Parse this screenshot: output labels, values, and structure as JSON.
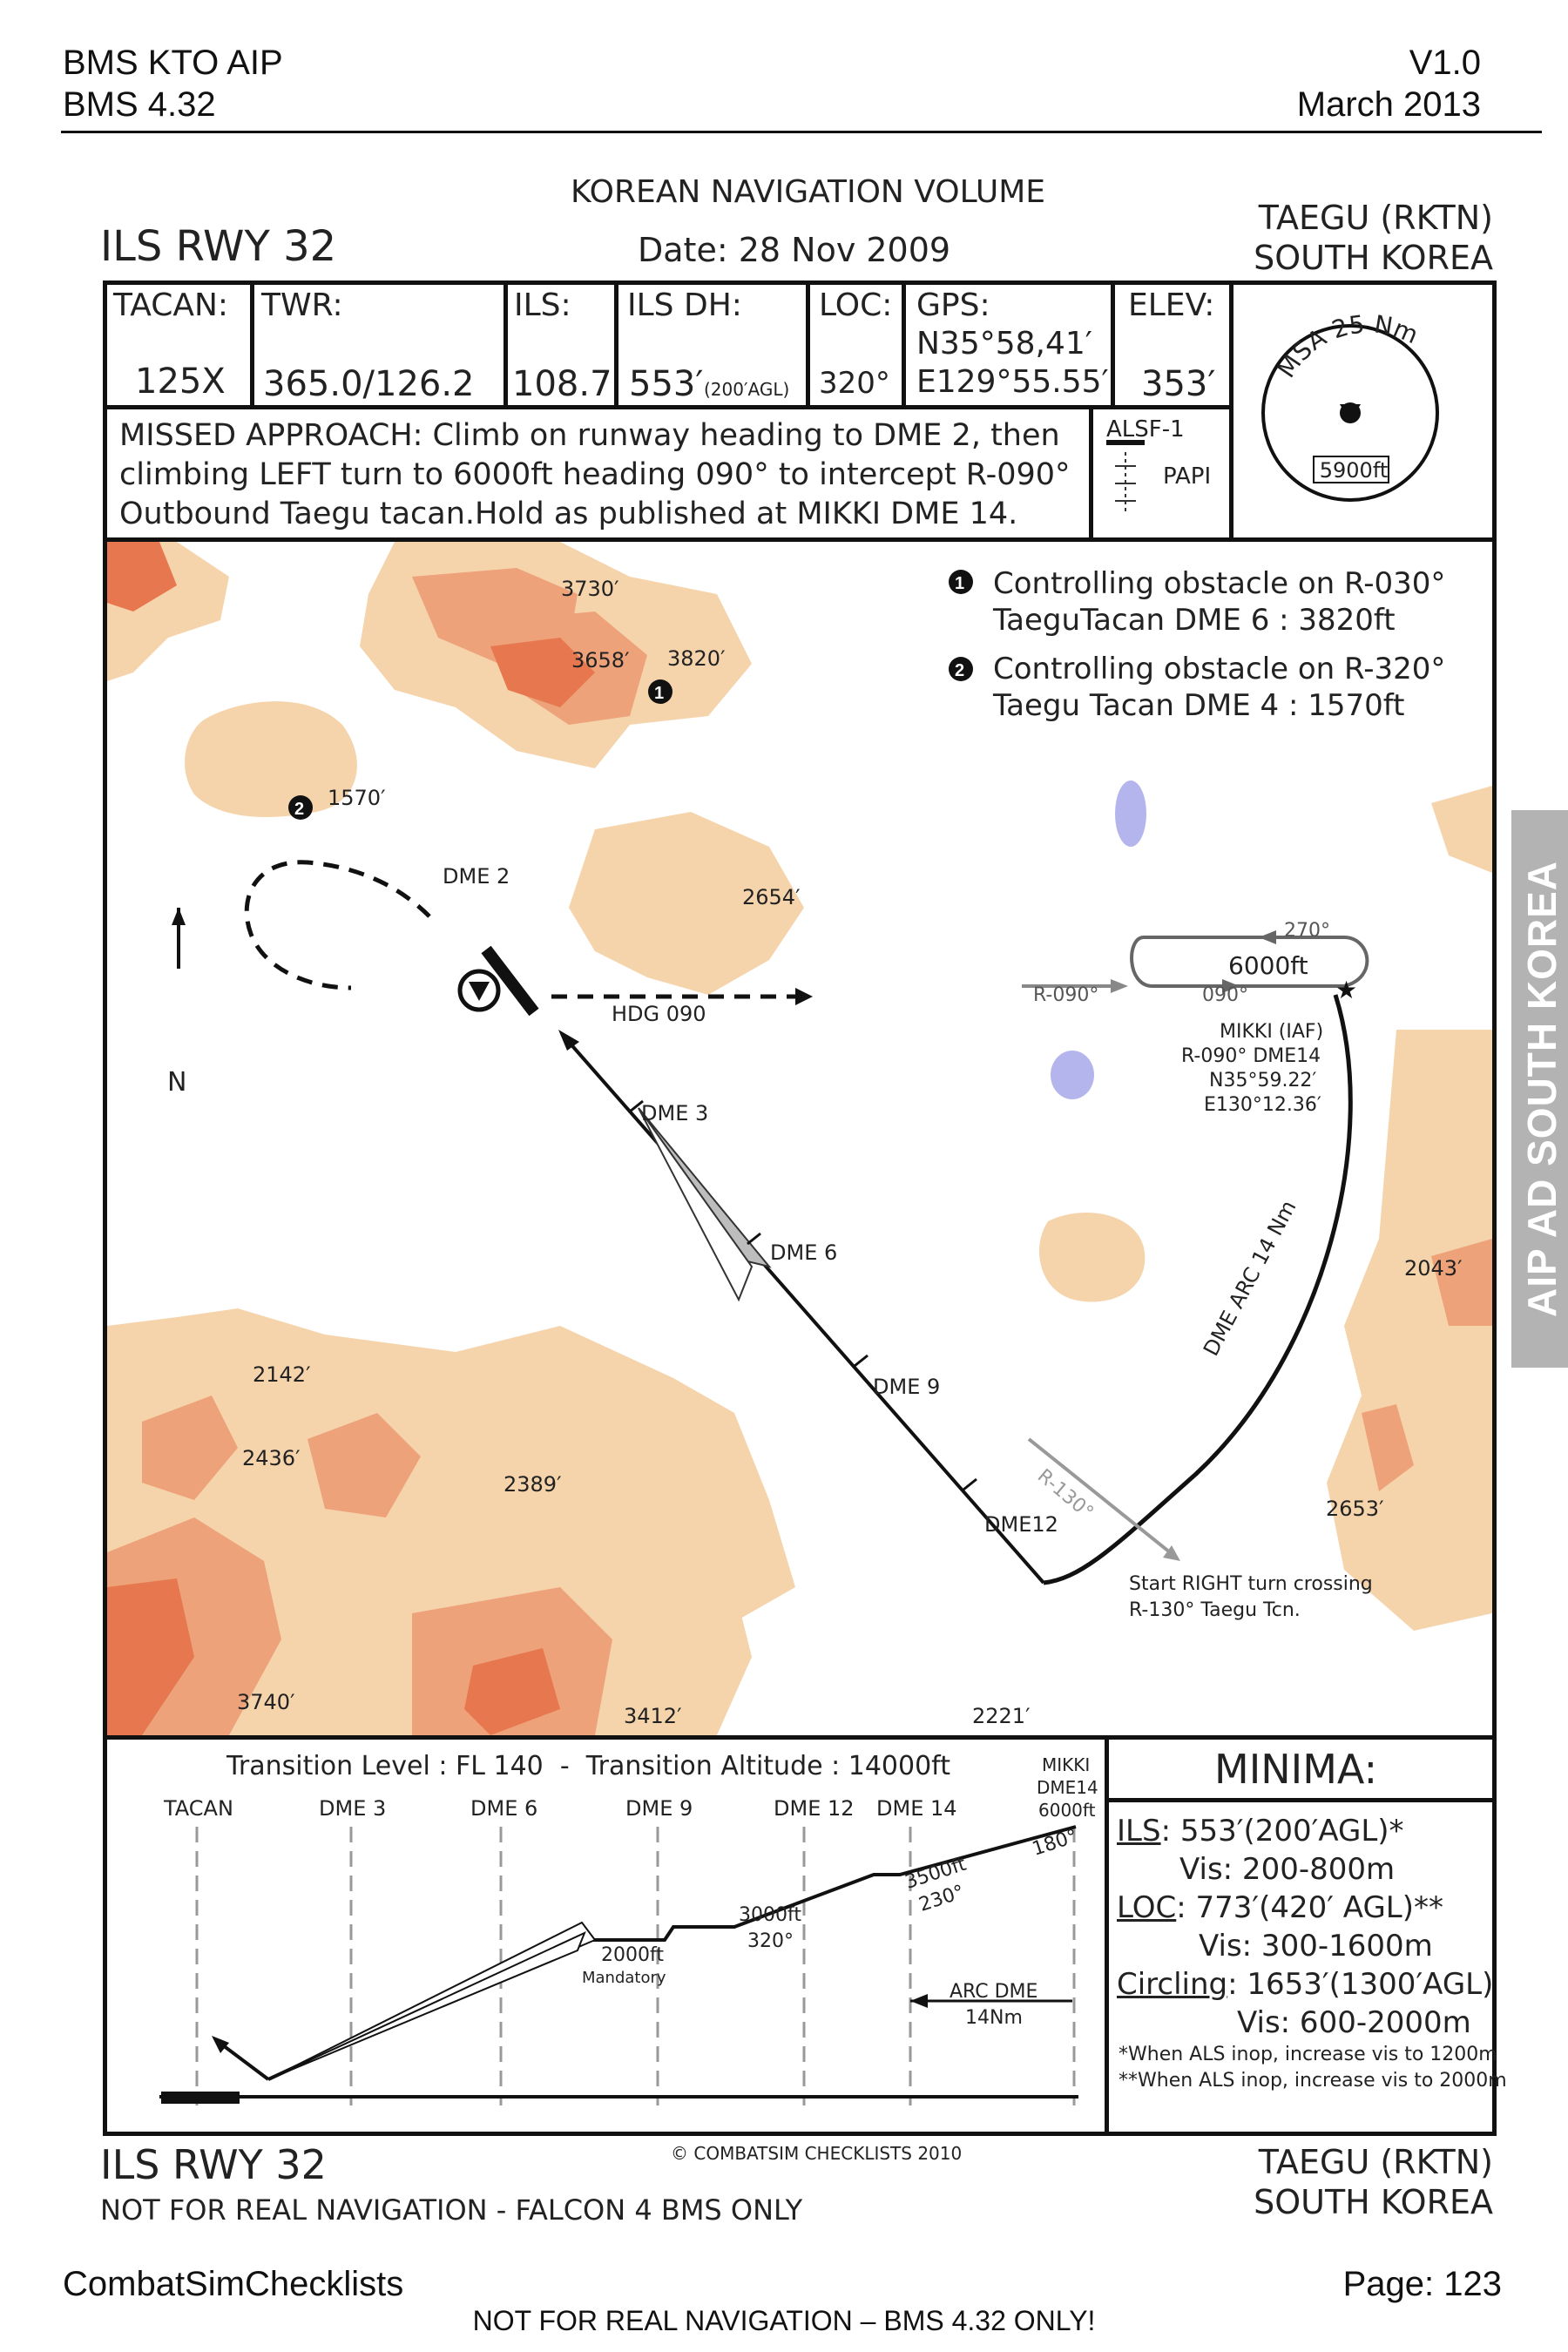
{
  "header": {
    "doc_title": "BMS KTO AIP",
    "doc_sub": "BMS 4.32",
    "version": "V1.0",
    "date": "March 2013"
  },
  "chart": {
    "volume": "KOREAN NAVIGATION VOLUME",
    "procedure": "ILS RWY 32",
    "chart_date": "Date: 28 Nov 2009",
    "airport": "TAEGU (RKTN)",
    "country": "SOUTH KOREA",
    "info": {
      "tacan_label": "TACAN:",
      "tacan_value": "125X",
      "twr_label": "TWR:",
      "twr_value": "365.0/126.2",
      "ils_label": "ILS:",
      "ils_value": "108.7",
      "ilsdh_label": "ILS DH:",
      "ilsdh_value": "553′",
      "ilsdh_agl": "(200′AGL)",
      "loc_label": "LOC:",
      "loc_value": "320°",
      "gps_label": "GPS:",
      "gps_lat": "N35°58,41′",
      "gps_lon": "E129°55.55′",
      "elev_label": "ELEV:",
      "elev_value": "353′"
    },
    "msa": {
      "label": "MSA 25 Nm",
      "value": "5900ft"
    },
    "missed_approach": [
      "MISSED APPROACH: Climb on runway heading to DME 2, then",
      "climbing LEFT turn to 6000ft heading 090° to intercept R-090°",
      "Outbound Taegu tacan.Hold as published at MIKKI DME 14."
    ],
    "lighting": {
      "alsf": "ALSF-1",
      "papi": "PAPI"
    },
    "plan": {
      "note1_line1": "Controlling obstacle on R-030°",
      "note1_line2": "TaeguTacan DME 6 : 3820ft",
      "note2_line1": "Controlling obstacle on R-320°",
      "note2_line2": "Taegu Tacan DME 4 : 1570ft",
      "north": "N",
      "elevations": [
        "3730′",
        "3658′",
        "3820′",
        "1570′",
        "2654′",
        "2043′",
        "2142′",
        "2436′",
        "2389′",
        "2653′",
        "3740′",
        "3412′",
        "2221′"
      ],
      "dme2": "DME 2",
      "dme3": "DME 3",
      "dme6": "DME 6",
      "dme9": "DME 9",
      "dme12": "DME12",
      "hdg": "HDG 090",
      "hold_alt": "6000ft",
      "hold_270": "270°",
      "hold_090": "090°",
      "r090": "R-090°",
      "mikki_name": "MIKKI (IAF)",
      "mikki_radial": "R-090° DME14",
      "mikki_lat": "N35°59.22′",
      "mikki_lon": "E130°12.36′",
      "arc": "DME ARC 14 Nm",
      "r130": "R-130°",
      "turn1": "Start RIGHT turn crossing",
      "turn2": "R-130° Taegu Tcn."
    },
    "profile": {
      "transition": "Transition Level : FL 140  -  Transition Altitude : 14000ft",
      "fixes": [
        "TACAN",
        "DME 3",
        "DME 6",
        "DME 9",
        "DME 12",
        "DME 14"
      ],
      "mikki": [
        "MIKKI",
        "DME14",
        "6000ft"
      ],
      "alt_2000": "2000ft",
      "mandatory": "Mandatory",
      "alt_3000": "3000ft",
      "crs_320": "320°",
      "alt_3500": "3500ft",
      "crs_230": "230°",
      "crs_180": "180°",
      "arc1": "ARC DME",
      "arc2": "14Nm"
    },
    "minima": {
      "title": "MINIMA:",
      "ils_label": "ILS",
      "ils_value": ": 553′(200′AGL)*",
      "ils_vis": "Vis: 200-800m",
      "loc_label": "LOC",
      "loc_value": ": 773′(420′ AGL)**",
      "loc_vis": "Vis: 300-1600m",
      "circ_label": "Circling",
      "circ_value": ": 1653′(1300′AGL)",
      "circ_vis": "Vis: 600-2000m",
      "note1": "*When ALS inop, increase vis to 1200m",
      "note2": "**When ALS inop, increase vis to 2000m"
    },
    "copyright": "© COMBATSIM CHECKLISTS 2010",
    "footer_proc": "ILS RWY 32",
    "footer_warn": "NOT FOR REAL NAVIGATION - FALCON 4 BMS ONLY",
    "footer_airport": "TAEGU (RKTN)",
    "footer_country": "SOUTH KOREA"
  },
  "side_tab": "AIP AD  SOUTH KOREA",
  "footer": {
    "left": "CombatSimChecklists",
    "page": "Page: 123",
    "warning": "NOT FOR REAL NAVIGATION – BMS 4.32 ONLY!"
  }
}
